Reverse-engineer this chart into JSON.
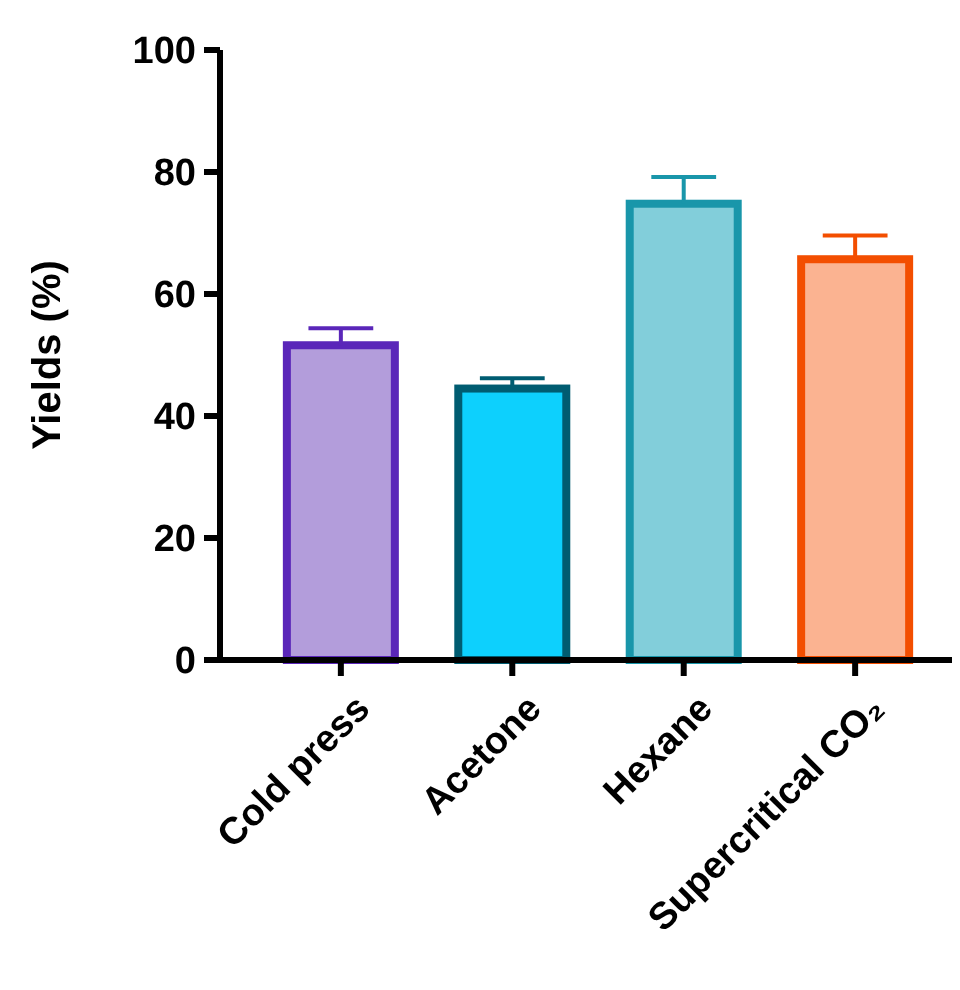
{
  "chart_data": {
    "type": "bar",
    "ylabel": "Yields (%)",
    "categories": [
      "Cold press",
      "Acetone",
      "Hexane",
      "Supercritical CO₂"
    ],
    "values": [
      51.6,
      44.5,
      74.8,
      65.7
    ],
    "colors": [
      "#b39ddb",
      "#0dd0fd",
      "#82ceda",
      "#fbb391"
    ],
    "errors": [
      [
        51.6,
        54.4
      ],
      [
        44.5,
        46.2
      ],
      [
        74.8,
        79.2
      ],
      [
        65.7,
        69.6
      ]
    ],
    "ylim": [
      0,
      100
    ],
    "yticks": [
      0,
      20,
      40,
      60,
      80,
      100
    ],
    "grid": false
  }
}
